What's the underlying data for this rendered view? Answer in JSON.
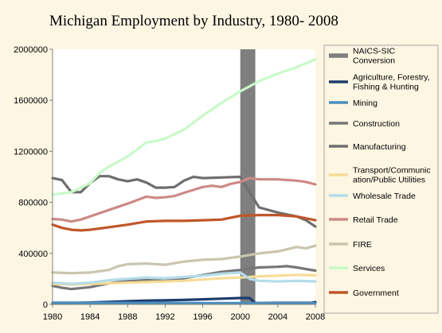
{
  "chart_data": {
    "type": "line",
    "title": "Michigan Employment by Industry, 1980- 2008",
    "xlabel": "",
    "ylabel": "",
    "xlim": [
      1980,
      2008
    ],
    "ylim": [
      0,
      2000000
    ],
    "x_ticks": [
      "1980",
      "1984",
      "1988",
      "1992",
      "1996",
      "2000",
      "2004",
      "2008"
    ],
    "y_ticks": [
      "0",
      "400000",
      "800000",
      "1200000",
      "1600000",
      "2000000"
    ],
    "grid": false,
    "legend_position": "right",
    "annotations": [
      {
        "type": "vertical-band",
        "label": "NAICS-SIC Conversion",
        "x_start": 2000,
        "x_end": 2001.6
      }
    ],
    "series": [
      {
        "name": "NAICS-SIC Conversion",
        "color": "#7f7f7f",
        "style": "band",
        "points": []
      },
      {
        "name": "Agriculture, Forestry, Fishing&Hunting",
        "color": "#1f3c6e",
        "points": [
          [
            1980,
            8000
          ],
          [
            1982,
            10000
          ],
          [
            1984,
            15000
          ],
          [
            1986,
            20000
          ],
          [
            1988,
            25000
          ],
          [
            1990,
            30000
          ],
          [
            1992,
            32000
          ],
          [
            1994,
            35000
          ],
          [
            1996,
            40000
          ],
          [
            1998,
            45000
          ],
          [
            2000,
            50000
          ],
          [
            2001,
            50000
          ],
          [
            2001.6,
            10000
          ],
          [
            2004,
            12000
          ],
          [
            2006,
            12000
          ],
          [
            2007.6,
            12000
          ],
          [
            2008,
            18000
          ]
        ]
      },
      {
        "name": "Mining",
        "color": "#4a8fbf",
        "points": [
          [
            1980,
            14000
          ],
          [
            1984,
            13000
          ],
          [
            1988,
            12000
          ],
          [
            1992,
            11000
          ],
          [
            1996,
            10000
          ],
          [
            2000,
            10000
          ],
          [
            2004,
            9000
          ],
          [
            2008,
            9000
          ]
        ]
      },
      {
        "name": "Construction",
        "color": "#767676",
        "points": [
          [
            1980,
            145000
          ],
          [
            1981,
            130000
          ],
          [
            1982,
            120000
          ],
          [
            1984,
            135000
          ],
          [
            1986,
            165000
          ],
          [
            1988,
            185000
          ],
          [
            1990,
            190000
          ],
          [
            1992,
            185000
          ],
          [
            1994,
            205000
          ],
          [
            1996,
            230000
          ],
          [
            1998,
            255000
          ],
          [
            2000,
            270000
          ],
          [
            2001,
            280000
          ],
          [
            2002,
            290000
          ],
          [
            2004,
            295000
          ],
          [
            2005,
            300000
          ],
          [
            2006,
            290000
          ],
          [
            2008,
            265000
          ]
        ]
      },
      {
        "name": "Manufacturing",
        "color": "#6e6e6e",
        "points": [
          [
            1980,
            990000
          ],
          [
            1981,
            975000
          ],
          [
            1982,
            880000
          ],
          [
            1983,
            880000
          ],
          [
            1984,
            950000
          ],
          [
            1985,
            1005000
          ],
          [
            1986,
            1005000
          ],
          [
            1987,
            980000
          ],
          [
            1988,
            965000
          ],
          [
            1989,
            980000
          ],
          [
            1990,
            955000
          ],
          [
            1991,
            915000
          ],
          [
            1992,
            915000
          ],
          [
            1993,
            920000
          ],
          [
            1994,
            970000
          ],
          [
            1995,
            1000000
          ],
          [
            1996,
            990000
          ],
          [
            1998,
            995000
          ],
          [
            2000,
            1000000
          ],
          [
            2001,
            880000
          ],
          [
            2002,
            760000
          ],
          [
            2004,
            720000
          ],
          [
            2006,
            690000
          ],
          [
            2007,
            660000
          ],
          [
            2008,
            610000
          ]
        ]
      },
      {
        "name": "Transport/Communic ation/Public Utilities",
        "color": "#f6dc96",
        "points": [
          [
            1980,
            160000
          ],
          [
            1982,
            155000
          ],
          [
            1984,
            160000
          ],
          [
            1986,
            165000
          ],
          [
            1988,
            170000
          ],
          [
            1990,
            175000
          ],
          [
            1992,
            180000
          ],
          [
            1994,
            185000
          ],
          [
            1996,
            195000
          ],
          [
            1998,
            205000
          ],
          [
            2000,
            210000
          ],
          [
            2001,
            215000
          ],
          [
            2002,
            220000
          ],
          [
            2004,
            225000
          ],
          [
            2006,
            232000
          ],
          [
            2008,
            228000
          ]
        ]
      },
      {
        "name": "Wholesale Trade",
        "color": "#b4dce8",
        "points": [
          [
            1980,
            170000
          ],
          [
            1982,
            160000
          ],
          [
            1984,
            170000
          ],
          [
            1986,
            190000
          ],
          [
            1988,
            200000
          ],
          [
            1990,
            210000
          ],
          [
            1992,
            205000
          ],
          [
            1994,
            215000
          ],
          [
            1996,
            225000
          ],
          [
            1998,
            240000
          ],
          [
            2000,
            250000
          ],
          [
            2001,
            200000
          ],
          [
            2002,
            185000
          ],
          [
            2004,
            180000
          ],
          [
            2006,
            185000
          ],
          [
            2008,
            180000
          ]
        ]
      },
      {
        "name": "Retail Trade",
        "color": "#cd8a86",
        "points": [
          [
            1980,
            670000
          ],
          [
            1981,
            665000
          ],
          [
            1982,
            650000
          ],
          [
            1983,
            665000
          ],
          [
            1984,
            690000
          ],
          [
            1986,
            740000
          ],
          [
            1988,
            790000
          ],
          [
            1990,
            845000
          ],
          [
            1991,
            835000
          ],
          [
            1992,
            840000
          ],
          [
            1993,
            850000
          ],
          [
            1994,
            875000
          ],
          [
            1996,
            920000
          ],
          [
            1997,
            930000
          ],
          [
            1998,
            920000
          ],
          [
            1999,
            945000
          ],
          [
            2000,
            960000
          ],
          [
            2001,
            990000
          ],
          [
            2002,
            980000
          ],
          [
            2004,
            980000
          ],
          [
            2006,
            970000
          ],
          [
            2007,
            960000
          ],
          [
            2008,
            940000
          ]
        ]
      },
      {
        "name": "FIRE",
        "color": "#c9c6ad",
        "points": [
          [
            1980,
            250000
          ],
          [
            1982,
            245000
          ],
          [
            1984,
            250000
          ],
          [
            1986,
            270000
          ],
          [
            1987,
            300000
          ],
          [
            1988,
            315000
          ],
          [
            1990,
            320000
          ],
          [
            1992,
            310000
          ],
          [
            1994,
            335000
          ],
          [
            1996,
            350000
          ],
          [
            1998,
            355000
          ],
          [
            2000,
            375000
          ],
          [
            2002,
            400000
          ],
          [
            2004,
            415000
          ],
          [
            2006,
            450000
          ],
          [
            2007,
            440000
          ],
          [
            2008,
            460000
          ]
        ]
      },
      {
        "name": "Services",
        "color": "#c8fac8",
        "points": [
          [
            1980,
            860000
          ],
          [
            1982,
            880000
          ],
          [
            1984,
            950000
          ],
          [
            1985,
            1030000
          ],
          [
            1986,
            1080000
          ],
          [
            1988,
            1160000
          ],
          [
            1990,
            1270000
          ],
          [
            1991,
            1280000
          ],
          [
            1992,
            1300000
          ],
          [
            1994,
            1370000
          ],
          [
            1996,
            1480000
          ],
          [
            1998,
            1580000
          ],
          [
            2000,
            1670000
          ],
          [
            2002,
            1750000
          ],
          [
            2004,
            1810000
          ],
          [
            2006,
            1860000
          ],
          [
            2008,
            1920000
          ]
        ]
      },
      {
        "name": "Government",
        "color": "#c0562a",
        "points": [
          [
            1980,
            625000
          ],
          [
            1981,
            600000
          ],
          [
            1982,
            585000
          ],
          [
            1983,
            580000
          ],
          [
            1984,
            585000
          ],
          [
            1986,
            605000
          ],
          [
            1988,
            625000
          ],
          [
            1990,
            650000
          ],
          [
            1992,
            655000
          ],
          [
            1994,
            655000
          ],
          [
            1996,
            660000
          ],
          [
            1998,
            665000
          ],
          [
            2000,
            695000
          ],
          [
            2002,
            700000
          ],
          [
            2004,
            700000
          ],
          [
            2006,
            690000
          ],
          [
            2008,
            660000
          ]
        ]
      }
    ]
  }
}
